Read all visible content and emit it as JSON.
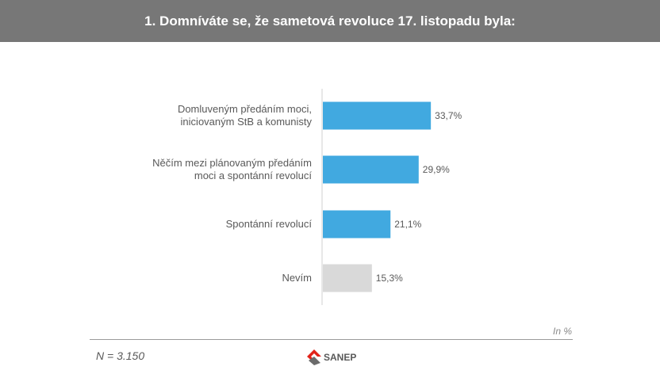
{
  "header": {
    "title": "1. Domníváte se, že sametová revoluce 17. listopadu byla:"
  },
  "chart_data": {
    "type": "bar",
    "orientation": "horizontal",
    "categories": [
      [
        "Domluveným předáním moci,",
        "iniciovaným StB a komunisty"
      ],
      [
        "Něčím mezi plánovaným předáním",
        "moci a spontánní revolucí"
      ],
      [
        "Spontánní revolucí"
      ],
      [
        "Nevím"
      ]
    ],
    "values": [
      33.7,
      29.9,
      21.1,
      15.3
    ],
    "value_labels": [
      "33,7%",
      "29,9%",
      "21,1%",
      "15,3%"
    ],
    "bar_colors": [
      "#41a9e0",
      "#41a9e0",
      "#41a9e0",
      "#d9d9d9"
    ],
    "xlim": [
      0,
      100
    ],
    "grid": false,
    "legend": "none"
  },
  "footer": {
    "unit_note": "In %",
    "sample_note": "N = 3.150",
    "logo_text": "SANEP",
    "logo_color": "#e2231a"
  }
}
